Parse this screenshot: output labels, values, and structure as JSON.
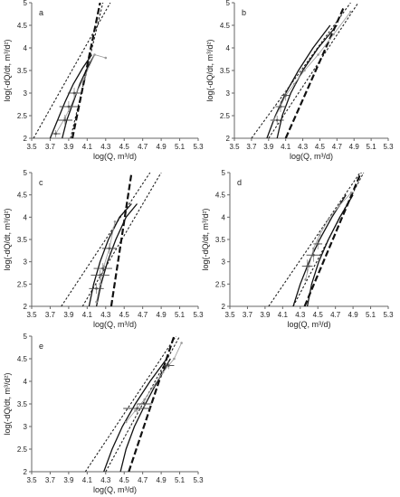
{
  "chart_data": [
    {
      "type": "line",
      "panel_label": "a",
      "xlabel": "log(Q, m³/d)",
      "ylabel": "log(-dQ/dt, m³/d²)",
      "xlim": [
        3.5,
        5.3
      ],
      "ylim": [
        2,
        5
      ],
      "xticks": [
        "3.5",
        "3.7",
        "3.9",
        "4.1",
        "4.3",
        "4.5",
        "4.7",
        "4.9",
        "5.1",
        "5.3"
      ],
      "yticks": [
        "2",
        "2.5",
        "3",
        "3.5",
        "4",
        "4.5",
        "5"
      ],
      "grid": false,
      "series": [
        {
          "style": "dotted",
          "x": [
            3.52,
            4.35
          ],
          "y": [
            2.0,
            5.0
          ]
        },
        {
          "style": "dotted",
          "x": [
            3.92,
            4.27
          ],
          "y": [
            2.0,
            5.0
          ]
        },
        {
          "style": "solid",
          "x": [
            3.7,
            3.78,
            3.86,
            3.95,
            4.05,
            4.15
          ],
          "y": [
            2.0,
            2.4,
            2.8,
            3.2,
            3.55,
            3.85
          ]
        },
        {
          "style": "solid",
          "x": [
            3.83,
            3.88,
            3.95,
            4.02,
            4.1,
            4.18
          ],
          "y": [
            2.0,
            2.4,
            2.8,
            3.2,
            3.55,
            3.85
          ]
        },
        {
          "style": "dashed",
          "x": [
            3.94,
            4.24
          ],
          "y": [
            2.0,
            5.0
          ]
        },
        {
          "style": "thin",
          "x": [
            3.76,
            3.86,
            3.92,
            3.98,
            4.06,
            4.18,
            4.3
          ],
          "y": [
            2.1,
            2.45,
            2.7,
            3.0,
            3.3,
            3.85,
            3.78
          ]
        }
      ],
      "error_points": [
        {
          "x": 3.76,
          "y": 2.1,
          "xerr": 0.05,
          "yerr": 0.08
        },
        {
          "x": 3.86,
          "y": 2.4,
          "xerr": 0.08,
          "yerr": 0.12
        },
        {
          "x": 3.9,
          "y": 2.7,
          "xerr": 0.1,
          "yerr": 0.12
        },
        {
          "x": 3.96,
          "y": 3.0,
          "xerr": 0.07,
          "yerr": 0.12
        }
      ]
    },
    {
      "type": "line",
      "panel_label": "b",
      "xlabel": "log(Q, m³/d)",
      "ylabel": "log(-dQ/dt, m³/d²)",
      "xlim": [
        3.5,
        5.3
      ],
      "ylim": [
        2,
        5
      ],
      "xticks": [
        "3.5",
        "3.7",
        "3.9",
        "4.1",
        "4.3",
        "4.5",
        "4.7",
        "4.9",
        "5.1",
        "5.3"
      ],
      "yticks": [
        "2",
        "2.5",
        "3",
        "3.5",
        "4",
        "4.5",
        "5"
      ],
      "grid": false,
      "series": [
        {
          "style": "dotted",
          "x": [
            3.7,
            4.86
          ],
          "y": [
            2.0,
            5.0
          ]
        },
        {
          "style": "dotted",
          "x": [
            3.9,
            4.95
          ],
          "y": [
            2.0,
            5.0
          ]
        },
        {
          "style": "solid",
          "x": [
            3.88,
            3.98,
            4.1,
            4.25,
            4.42,
            4.62
          ],
          "y": [
            2.0,
            2.5,
            3.0,
            3.5,
            4.0,
            4.5
          ]
        },
        {
          "style": "solid",
          "x": [
            4.0,
            4.06,
            4.16,
            4.3,
            4.48,
            4.7
          ],
          "y": [
            2.0,
            2.5,
            3.0,
            3.5,
            4.0,
            4.5
          ]
        },
        {
          "style": "dashed",
          "x": [
            4.1,
            4.78
          ],
          "y": [
            2.0,
            4.9
          ]
        },
        {
          "style": "thin",
          "x": [
            3.96,
            4.04,
            4.1,
            4.2,
            4.32,
            4.48,
            4.66,
            4.86
          ],
          "y": [
            2.4,
            2.7,
            2.95,
            3.2,
            3.5,
            3.85,
            4.3,
            4.8
          ]
        }
      ],
      "error_points": [
        {
          "x": 4.0,
          "y": 2.4,
          "xerr": 0.08,
          "yerr": 0.1
        },
        {
          "x": 4.04,
          "y": 2.7,
          "xerr": 0.06,
          "yerr": 0.12
        },
        {
          "x": 4.1,
          "y": 2.95,
          "xerr": 0.05,
          "yerr": 0.12
        }
      ]
    },
    {
      "type": "line",
      "panel_label": "c",
      "xlabel": "log(Q, m³/d)",
      "ylabel": "log(-dQ/dt, m³/d²)",
      "xlim": [
        3.5,
        5.3
      ],
      "ylim": [
        2,
        5
      ],
      "xticks": [
        "3.5",
        "3.7",
        "3.9",
        "4.1",
        "4.3",
        "4.5",
        "4.7",
        "4.9",
        "5.1",
        "5.3"
      ],
      "yticks": [
        "2",
        "2.5",
        "3",
        "3.5",
        "4",
        "4.5",
        "5"
      ],
      "grid": false,
      "series": [
        {
          "style": "dotted",
          "x": [
            3.82,
            4.78
          ],
          "y": [
            2.0,
            5.0
          ]
        },
        {
          "style": "dotted",
          "x": [
            4.05,
            4.9
          ],
          "y": [
            2.0,
            5.0
          ]
        },
        {
          "style": "solid",
          "x": [
            4.12,
            4.17,
            4.24,
            4.33,
            4.45,
            4.58
          ],
          "y": [
            2.0,
            2.5,
            3.0,
            3.5,
            4.0,
            4.3
          ]
        },
        {
          "style": "solid",
          "x": [
            4.2,
            4.25,
            4.32,
            4.41,
            4.52,
            4.64
          ],
          "y": [
            2.0,
            2.5,
            3.0,
            3.5,
            4.0,
            4.3
          ]
        },
        {
          "style": "dashed",
          "x": [
            4.36,
            4.58
          ],
          "y": [
            2.0,
            5.0
          ]
        },
        {
          "style": "thin",
          "x": [
            4.2,
            4.24,
            4.28,
            4.34,
            4.4
          ],
          "y": [
            2.1,
            2.5,
            2.9,
            3.3,
            3.9
          ]
        }
      ],
      "error_points": [
        {
          "x": 4.2,
          "y": 2.4,
          "xerr": 0.08,
          "yerr": 0.12
        },
        {
          "x": 4.24,
          "y": 2.7,
          "xerr": 0.1,
          "yerr": 0.12
        },
        {
          "x": 4.27,
          "y": 2.85,
          "xerr": 0.1,
          "yerr": 0.12
        },
        {
          "x": 4.34,
          "y": 3.3,
          "xerr": 0.08,
          "yerr": 0.12
        }
      ]
    },
    {
      "type": "line",
      "panel_label": "d",
      "xlabel": "log(Q, m³/d)",
      "ylabel": "log(-dQ/dt, m³/d²)",
      "xlim": [
        3.5,
        5.3
      ],
      "ylim": [
        2,
        5
      ],
      "xticks": [
        "3.5",
        "3.7",
        "3.9",
        "4.1",
        "4.3",
        "4.5",
        "4.7",
        "4.9",
        "5.1",
        "5.3"
      ],
      "yticks": [
        "2",
        "2.5",
        "3",
        "3.5",
        "4",
        "4.5",
        "5"
      ],
      "grid": false,
      "series": [
        {
          "style": "dotted",
          "x": [
            3.94,
            4.98
          ],
          "y": [
            2.0,
            5.0
          ]
        },
        {
          "style": "dotted",
          "x": [
            4.22,
            5.02
          ],
          "y": [
            2.0,
            5.0
          ]
        },
        {
          "style": "solid",
          "x": [
            4.22,
            4.3,
            4.4,
            4.52,
            4.66,
            4.82
          ],
          "y": [
            2.0,
            2.5,
            3.0,
            3.5,
            4.0,
            4.5
          ]
        },
        {
          "style": "solid",
          "x": [
            4.38,
            4.43,
            4.51,
            4.62,
            4.75,
            4.9
          ],
          "y": [
            2.0,
            2.5,
            3.0,
            3.5,
            4.0,
            4.5
          ]
        },
        {
          "style": "dashed",
          "x": [
            4.35,
            4.99
          ],
          "y": [
            2.0,
            5.0
          ]
        },
        {
          "style": "thin",
          "x": [
            4.36,
            4.4,
            4.45,
            4.52,
            4.62,
            4.74,
            4.88
          ],
          "y": [
            2.6,
            2.9,
            3.3,
            3.6,
            3.95,
            4.25,
            4.55
          ]
        }
      ],
      "error_points": [
        {
          "x": 4.38,
          "y": 2.9,
          "xerr": 0.06,
          "yerr": 0.15
        },
        {
          "x": 4.45,
          "y": 3.15,
          "xerr": 0.08,
          "yerr": 0.15
        },
        {
          "x": 4.5,
          "y": 3.4,
          "xerr": 0.05,
          "yerr": 0.12
        }
      ]
    },
    {
      "type": "line",
      "panel_label": "e",
      "xlabel": "log(Q, m³/d)",
      "ylabel": "log(-dQ/dt, m³/d²)",
      "xlim": [
        3.5,
        5.3
      ],
      "ylim": [
        2,
        5
      ],
      "xticks": [
        "3.5",
        "3.7",
        "3.9",
        "4.1",
        "4.3",
        "4.5",
        "4.7",
        "4.9",
        "5.1",
        "5.3"
      ],
      "yticks": [
        "2",
        "2.5",
        "3",
        "3.5",
        "4",
        "4.5",
        "5"
      ],
      "grid": false,
      "series": [
        {
          "style": "dotted",
          "x": [
            4.08,
            5.06
          ],
          "y": [
            2.0,
            5.0
          ]
        },
        {
          "style": "dotted",
          "x": [
            4.3,
            5.1
          ],
          "y": [
            2.0,
            5.0
          ]
        },
        {
          "style": "solid",
          "x": [
            4.28,
            4.37,
            4.48,
            4.62,
            4.78,
            4.96
          ],
          "y": [
            2.0,
            2.5,
            3.0,
            3.5,
            4.0,
            4.5
          ]
        },
        {
          "style": "solid",
          "x": [
            4.46,
            4.52,
            4.61,
            4.73,
            4.86,
            5.0
          ],
          "y": [
            2.0,
            2.5,
            3.0,
            3.5,
            4.0,
            4.5
          ]
        },
        {
          "style": "dashed",
          "x": [
            4.55,
            5.04
          ],
          "y": [
            2.0,
            5.0
          ]
        },
        {
          "style": "thin",
          "x": [
            4.52,
            4.62,
            4.72,
            4.82,
            4.92,
            5.04,
            5.12
          ],
          "y": [
            3.1,
            3.35,
            3.6,
            3.9,
            4.2,
            4.5,
            4.85
          ]
        }
      ],
      "error_points": [
        {
          "x": 4.64,
          "y": 3.4,
          "xerr": 0.15,
          "yerr": 0.1
        },
        {
          "x": 4.72,
          "y": 3.5,
          "xerr": 0.08,
          "yerr": 0.1
        },
        {
          "x": 4.98,
          "y": 4.35,
          "xerr": 0.06,
          "yerr": 0.08
        }
      ]
    }
  ]
}
